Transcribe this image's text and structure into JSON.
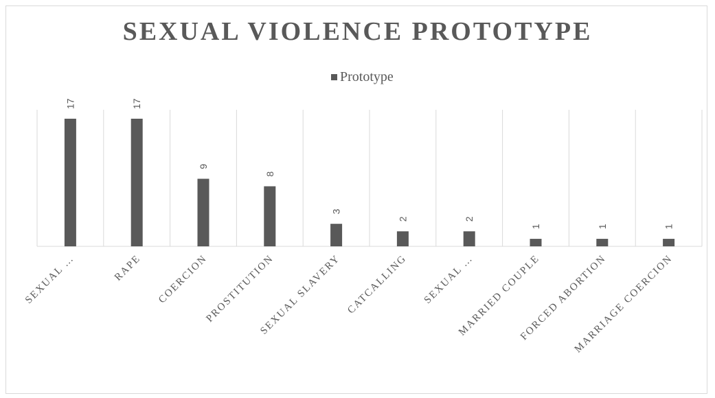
{
  "chart_data": {
    "type": "bar",
    "title": "SEXUAL VIOLENCE PROTOTYPE",
    "categories": [
      "SEXUAL …",
      "RAPE",
      "COERCION",
      "PROSTITUTION",
      "SEXUAL SLAVERY",
      "CATCALLING",
      "SEXUAL …",
      "MARRIED COUPLE",
      "FORCED ABORTION",
      "MARRIAGE COERCION"
    ],
    "series": [
      {
        "name": "Prototype",
        "values": [
          17,
          17,
          9,
          8,
          3,
          2,
          2,
          1,
          1,
          1
        ]
      }
    ],
    "legend": "top-center",
    "xlabel": "",
    "ylabel": "",
    "ylim": [
      0,
      17
    ],
    "grid": "vertical category separators",
    "bar_color": "#595959"
  }
}
